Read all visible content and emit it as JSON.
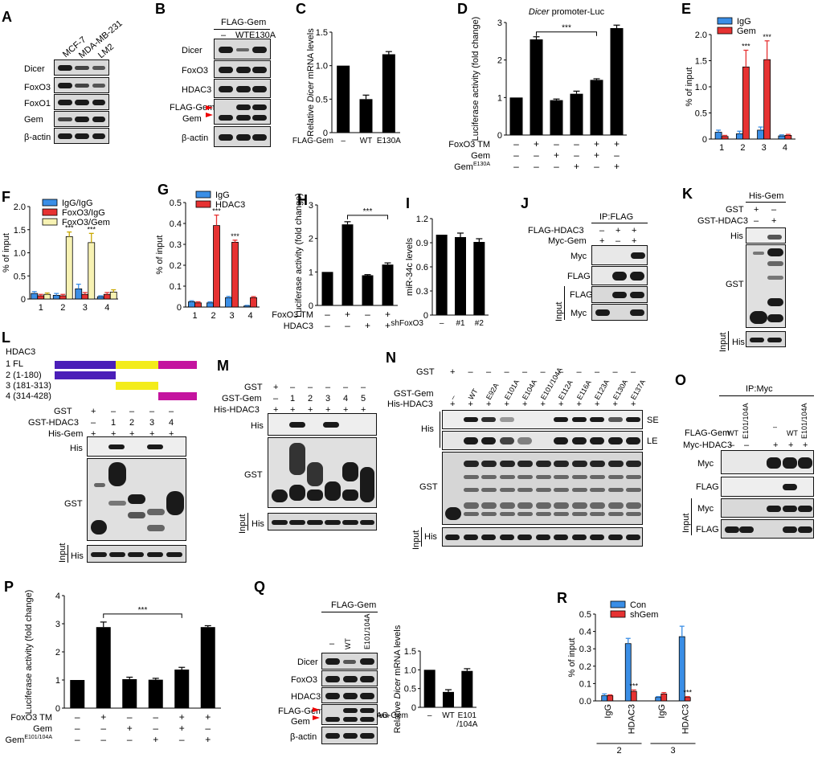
{
  "panel_labels": [
    "A",
    "B",
    "C",
    "D",
    "E",
    "F",
    "G",
    "H",
    "I",
    "J",
    "K",
    "L",
    "M",
    "N",
    "O",
    "P",
    "Q",
    "R"
  ],
  "panelA": {
    "cells": [
      "MCF-7",
      "MDA-MB-231",
      "LM2"
    ],
    "rows": [
      "Dicer",
      "FoxO3",
      "FoxO1",
      "Gem",
      "β-actin"
    ]
  },
  "panelB": {
    "header": "FLAG-Gem",
    "lanes": [
      "–",
      "WT",
      "E130A"
    ],
    "rows": [
      "Dicer",
      "FoxO3",
      "HDAC3",
      "FLAG-Gem",
      "Gem",
      "β-actin"
    ]
  },
  "panelD": {
    "title": "Dicer promoter-Luc",
    "title_gene": "Dicer",
    "title_rest": " promoter-Luc"
  },
  "panelH": {
    "ylabel": "Luciferase activity (fold change)"
  },
  "panelJ": {
    "header": "IP:FLAG",
    "conds": [
      {
        "name": "FLAG-HDAC3",
        "vals": [
          "–",
          "+",
          "+"
        ]
      },
      {
        "name": "Myc-Gem",
        "vals": [
          "+",
          "–",
          "+"
        ]
      }
    ],
    "rows": [
      "Myc",
      "FLAG",
      "FLAG",
      "Myc"
    ],
    "input_label": "Input"
  },
  "panelK": {
    "header": "His-Gem",
    "conds": [
      {
        "name": "GST",
        "vals": [
          "+",
          "–"
        ]
      },
      {
        "name": "GST-HDAC3",
        "vals": [
          "–",
          "+"
        ]
      }
    ],
    "rows": [
      "His",
      "GST",
      "His"
    ],
    "input_label": "Input"
  },
  "panelL": {
    "title": "HDAC3",
    "constructs": [
      "1 FL",
      "2 (1-180)",
      "3 (181-313)",
      "4 (314-428)"
    ],
    "colors": [
      "#4b1fb8",
      "#f3ec1a",
      "#c4149f"
    ],
    "conds": [
      {
        "name": "GST",
        "vals": [
          "+",
          "–",
          "–",
          "–",
          "–"
        ]
      },
      {
        "name": "GST-HDAC3",
        "vals": [
          "–",
          "1",
          "2",
          "3",
          "4"
        ]
      },
      {
        "name": "His-Gem",
        "vals": [
          "+",
          "+",
          "+",
          "+",
          "+"
        ]
      }
    ],
    "rows": [
      "His",
      "GST",
      "His"
    ],
    "input_label": "Input"
  },
  "panelM": {
    "conds": [
      {
        "name": "GST",
        "vals": [
          "+",
          "–",
          "–",
          "–",
          "–",
          "–"
        ]
      },
      {
        "name": "GST-Gem",
        "vals": [
          "–",
          "1",
          "2",
          "3",
          "4",
          "5"
        ]
      },
      {
        "name": "His-HDAC3",
        "vals": [
          "+",
          "+",
          "+",
          "+",
          "+",
          "+"
        ]
      }
    ],
    "rows": [
      "His",
      "GST",
      "His"
    ],
    "input_label": "Input"
  },
  "panelN": {
    "gst_row": {
      "name": "GST",
      "vals": [
        "+",
        "–",
        "–",
        "–",
        "–",
        "–",
        "–",
        "–",
        "–",
        "–",
        "–"
      ]
    },
    "gem_label": "GST-Gem",
    "lanes": [
      "–",
      "WT",
      "E92A",
      "E101A",
      "E104A",
      "E101/104A",
      "E112A",
      "E116A",
      "E123A",
      "E130A",
      "E137A"
    ],
    "his_row": {
      "name": "His-HDAC3",
      "vals": [
        "+",
        "+",
        "+",
        "+",
        "+",
        "+",
        "+",
        "+",
        "+",
        "+",
        "+"
      ]
    },
    "rows": [
      "His",
      "GST",
      "His"
    ],
    "exposures": [
      "SE",
      "LE"
    ],
    "input_label": "Input"
  },
  "panelO": {
    "header": "IP:Myc",
    "flag_label": "FLAG-Gem",
    "flag_lanes": [
      "WT",
      "E101/104A",
      "",
      "–",
      "WT",
      "E101/104A"
    ],
    "myc_row": {
      "name": "Myc-HDAC3",
      "vals": [
        "–",
        "–",
        "+",
        "+",
        "+"
      ]
    },
    "rows": [
      "Myc",
      "FLAG",
      "Myc",
      "FLAG"
    ],
    "input_label": "Input"
  },
  "panelQ": {
    "header": "FLAG-Gem",
    "lanes": [
      "–",
      "WT",
      "E101/104A"
    ],
    "rows": [
      "Dicer",
      "FoxO3",
      "HDAC3",
      "FLAG-Gem",
      "Gem",
      "β-actin"
    ],
    "bar_xlabel": "FLAG-Gem",
    "bar_lanes": [
      "–",
      "WT",
      "E101/104A"
    ]
  },
  "chart_data": [
    {
      "id": "C",
      "type": "bar",
      "title": "",
      "ylabel": "Relative Dicer mRNA levels",
      "ylim": [
        0,
        1.5
      ],
      "yticks": [
        "0",
        "0.5",
        "1.0",
        "1.5"
      ],
      "xlabel": "FLAG-Gem",
      "categories": [
        "–",
        "WT",
        "E130A"
      ],
      "values": [
        1.0,
        0.5,
        1.17
      ],
      "errors": [
        0,
        0.06,
        0.04
      ]
    },
    {
      "id": "D",
      "type": "bar",
      "title": "Dicer promoter-Luc",
      "ylabel": "Luciferase activity (fold change)",
      "ylim": [
        0,
        3
      ],
      "yticks": [
        "0",
        "1",
        "2",
        "3"
      ],
      "values": [
        1.0,
        2.55,
        0.93,
        1.1,
        1.47,
        2.85
      ],
      "errors": [
        0,
        0.07,
        0.03,
        0.07,
        0.03,
        0.08
      ],
      "conditions": [
        {
          "name": "FoxO3 TM",
          "vals": [
            "–",
            "+",
            "–",
            "–",
            "+",
            "+"
          ]
        },
        {
          "name": "Gem",
          "vals": [
            "–",
            "–",
            "+",
            "–",
            "+",
            "–"
          ]
        },
        {
          "name": "Gem E130A",
          "vals": [
            "–",
            "–",
            "–",
            "+",
            "–",
            "+"
          ]
        }
      ],
      "significance": "***"
    },
    {
      "id": "E",
      "type": "bar",
      "ylabel": "% of input",
      "ylim": [
        0,
        2.0
      ],
      "yticks": [
        "0",
        "0.5",
        "1.0",
        "1.5",
        "2.0"
      ],
      "categories": [
        "1",
        "2",
        "3",
        "4"
      ],
      "series": [
        {
          "name": "IgG",
          "color": "#3a8ee6",
          "values": [
            0.13,
            0.1,
            0.17,
            0.06
          ],
          "errors": [
            0.04,
            0.05,
            0.06,
            0.02
          ]
        },
        {
          "name": "Gem",
          "color": "#e63232",
          "values": [
            0.05,
            1.38,
            1.52,
            0.07
          ],
          "errors": [
            0.02,
            0.32,
            0.36,
            0.02
          ]
        }
      ],
      "significance": [
        "",
        "***",
        "***",
        ""
      ]
    },
    {
      "id": "F",
      "type": "bar",
      "ylabel": "% of input",
      "ylim": [
        0,
        2.0
      ],
      "yticks": [
        "0",
        "0.5",
        "1.0",
        "1.5",
        "2.0"
      ],
      "categories": [
        "1",
        "2",
        "3",
        "4"
      ],
      "series": [
        {
          "name": "IgG/IgG",
          "color": "#3a8ee6",
          "values": [
            0.12,
            0.08,
            0.22,
            0.05
          ],
          "errors": [
            0.04,
            0.04,
            0.1,
            0.02
          ]
        },
        {
          "name": "FoxO3/IgG",
          "color": "#e63232",
          "values": [
            0.07,
            0.07,
            0.1,
            0.1
          ],
          "errors": [
            0.03,
            0.03,
            0.04,
            0.04
          ]
        },
        {
          "name": "FoxO3/Gem",
          "color": "#f7f2b3",
          "values": [
            0.1,
            1.35,
            1.22,
            0.15
          ],
          "errors": [
            0.03,
            0.1,
            0.2,
            0.05
          ]
        }
      ],
      "significance": [
        "",
        "***",
        "***",
        ""
      ]
    },
    {
      "id": "G",
      "type": "bar",
      "ylabel": "% of input",
      "ylim": [
        0,
        0.5
      ],
      "yticks": [
        "0",
        "0.1",
        "0.2",
        "0.3",
        "0.4",
        "0.5"
      ],
      "categories": [
        "1",
        "2",
        "3",
        "4"
      ],
      "series": [
        {
          "name": "IgG",
          "color": "#3a8ee6",
          "values": [
            0.025,
            0.02,
            0.045,
            0.005
          ],
          "errors": [
            0.005,
            0.005,
            0.006,
            0.003
          ]
        },
        {
          "name": "HDAC3",
          "color": "#e63232",
          "values": [
            0.02,
            0.39,
            0.31,
            0.045
          ],
          "errors": [
            0.005,
            0.05,
            0.01,
            0.005
          ]
        }
      ],
      "significance": [
        "",
        "***",
        "***",
        ""
      ]
    },
    {
      "id": "H",
      "type": "bar",
      "ylabel": "Luciferase activity (fold change)",
      "ylim": [
        0,
        3
      ],
      "yticks": [
        "0",
        "1",
        "2",
        "3"
      ],
      "values": [
        1.0,
        2.42,
        0.9,
        1.22
      ],
      "errors": [
        0,
        0.08,
        0.02,
        0.05
      ],
      "conditions": [
        {
          "name": "FoxO3 TM",
          "vals": [
            "–",
            "+",
            "–",
            "+"
          ]
        },
        {
          "name": "HDAC3",
          "vals": [
            "–",
            "–",
            "+",
            "+"
          ]
        }
      ],
      "significance": "***"
    },
    {
      "id": "I",
      "type": "bar",
      "ylabel": "miR-34c levels",
      "ylim": [
        0,
        1.2
      ],
      "yticks": [
        "0",
        "0.3",
        "0.6",
        "0.9",
        "1.2"
      ],
      "xlabel": "shFoxO3",
      "categories": [
        "–",
        "#1",
        "#2"
      ],
      "values": [
        1.0,
        0.97,
        0.91
      ],
      "errors": [
        0,
        0.05,
        0.04
      ]
    },
    {
      "id": "P",
      "type": "bar",
      "ylabel": "Luciferase activity (fold change)",
      "ylim": [
        0,
        4
      ],
      "yticks": [
        "0",
        "1",
        "2",
        "3",
        "4"
      ],
      "values": [
        1.0,
        2.88,
        1.03,
        1.01,
        1.37,
        2.88
      ],
      "errors": [
        0,
        0.18,
        0.07,
        0.05,
        0.08,
        0.05
      ],
      "conditions": [
        {
          "name": "FoxO3 TM",
          "vals": [
            "–",
            "+",
            "–",
            "–",
            "+",
            "+"
          ]
        },
        {
          "name": "Gem",
          "vals": [
            "–",
            "–",
            "+",
            "–",
            "+",
            "–"
          ]
        },
        {
          "name": "Gem E101/104A",
          "vals": [
            "–",
            "–",
            "–",
            "+",
            "–",
            "+"
          ]
        }
      ],
      "significance": "***"
    },
    {
      "id": "Q",
      "type": "bar",
      "ylabel": "Relative Dicer mRNA levels",
      "ylim": [
        0,
        1.5
      ],
      "yticks": [
        "0",
        "0.5",
        "1.0",
        "1.5"
      ],
      "xlabel": "FLAG-Gem",
      "categories": [
        "–",
        "WT",
        "E101/104A"
      ],
      "values": [
        1.0,
        0.41,
        0.97
      ],
      "errors": [
        0,
        0.06,
        0.06
      ]
    },
    {
      "id": "R",
      "type": "bar",
      "ylabel": "% of input",
      "ylim": [
        0,
        0.5
      ],
      "yticks": [
        "0.0",
        "0.1",
        "0.2",
        "0.3",
        "0.4",
        "0.5"
      ],
      "categories": [
        "IgG",
        "HDAC3",
        "IgG",
        "HDAC3"
      ],
      "groups": [
        "2",
        "3"
      ],
      "series": [
        {
          "name": "Con",
          "color": "#3a8ee6",
          "values": [
            0.03,
            0.33,
            0.02,
            0.37
          ],
          "errors": [
            0.01,
            0.03,
            0.005,
            0.06
          ]
        },
        {
          "name": "shGem",
          "color": "#e63232",
          "values": [
            0.03,
            0.055,
            0.04,
            0.02
          ],
          "errors": [
            0.005,
            0.008,
            0.008,
            0.005
          ]
        }
      ],
      "significance": [
        "",
        "***",
        "",
        "***"
      ]
    }
  ]
}
